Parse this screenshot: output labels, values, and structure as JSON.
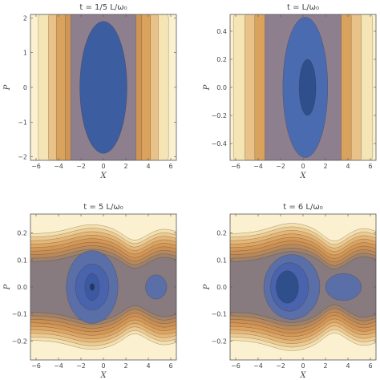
{
  "chart_data": [
    {
      "type": "contour",
      "title": "t = 1/5 L/ω₀",
      "xlabel": "X",
      "ylabel": "P",
      "xlim": [
        -6.5,
        6.5
      ],
      "ylim": [
        -2.1,
        2.1
      ],
      "x_ticks": [
        -6,
        -4,
        -2,
        0,
        2,
        4,
        6
      ],
      "x_tick_labels": [
        "−6",
        "−4",
        "−2",
        "0",
        "2",
        "4",
        "6"
      ],
      "y_ticks": [
        -2,
        -1,
        0,
        1,
        2
      ],
      "y_tick_labels": [
        "−2",
        "−1",
        "0",
        "1",
        "2"
      ],
      "bands": [
        {
          "type": "slab",
          "half_width": 5.8,
          "color": "#f5e5b5"
        },
        {
          "type": "slab",
          "half_width": 4.9,
          "color": "#e8c288"
        },
        {
          "type": "slab",
          "half_width": 4.2,
          "color": "#d9a35e"
        },
        {
          "type": "slab",
          "half_width": 3.4,
          "color": "#cf9556"
        },
        {
          "type": "slab",
          "half_width": 2.9,
          "color": "#8e7f8f"
        },
        {
          "type": "ellipse",
          "cx": 0,
          "cy": 0,
          "rx": 2.1,
          "ry": 1.9,
          "color": "#3c5da0"
        }
      ]
    },
    {
      "type": "contour",
      "title": "t = L/ω₀",
      "xlabel": "X",
      "ylabel": "P",
      "xlim": [
        -6.5,
        6.5
      ],
      "ylim": [
        -0.52,
        0.52
      ],
      "x_ticks": [
        -6,
        -4,
        -2,
        0,
        2,
        4,
        6
      ],
      "x_tick_labels": [
        "−6",
        "−4",
        "−2",
        "0",
        "2",
        "4",
        "6"
      ],
      "y_ticks": [
        -0.4,
        -0.2,
        0,
        0.2,
        0.4
      ],
      "y_tick_labels": [
        "−0.4",
        "−0.2",
        "0.0",
        "0.2",
        "0.4"
      ],
      "bands": [
        {
          "type": "slab",
          "half_width": 6.2,
          "color": "#f5e5b5"
        },
        {
          "type": "slab",
          "half_width": 5.2,
          "color": "#e8c288"
        },
        {
          "type": "slab",
          "half_width": 4.3,
          "color": "#d9a35e"
        },
        {
          "type": "slab",
          "half_width": 3.4,
          "color": "#8e7f8f"
        },
        {
          "type": "ellipse",
          "cx": 0.2,
          "cy": 0,
          "rx": 2.0,
          "ry": 0.5,
          "color": "#4a6bb0"
        },
        {
          "type": "ellipse",
          "cx": 0.4,
          "cy": 0,
          "rx": 0.75,
          "ry": 0.2,
          "color": "#2f4e8c"
        }
      ]
    },
    {
      "type": "contour",
      "title": "t = 5 L/ω₀",
      "xlabel": "X",
      "ylabel": "P",
      "xlim": [
        -6.5,
        6.5
      ],
      "ylim": [
        -0.27,
        0.27
      ],
      "x_ticks": [
        -6,
        -4,
        -2,
        0,
        2,
        4,
        6
      ],
      "x_tick_labels": [
        "−6",
        "−4",
        "−2",
        "0",
        "2",
        "4",
        "6"
      ],
      "y_ticks": [
        -0.2,
        -0.1,
        0,
        0.1,
        0.2
      ],
      "y_tick_labels": [
        "−0.2",
        "−0.1",
        "0.0",
        "0.1",
        "0.2"
      ],
      "bands": [
        {
          "type": "wave",
          "a": 0.255,
          "b": 0.035,
          "color": "#f4dfae"
        },
        {
          "type": "wave",
          "a": 0.235,
          "b": 0.035,
          "color": "#eccb93"
        },
        {
          "type": "wave",
          "a": 0.215,
          "b": 0.035,
          "color": "#e4b779"
        },
        {
          "type": "wave",
          "a": 0.195,
          "b": 0.035,
          "color": "#dba665"
        },
        {
          "type": "wave",
          "a": 0.175,
          "b": 0.035,
          "color": "#d39858"
        },
        {
          "type": "wave",
          "a": 0.155,
          "b": 0.035,
          "color": "#c98f55"
        },
        {
          "type": "wave",
          "a": 0.135,
          "b": 0.035,
          "color": "#b78a5e"
        },
        {
          "type": "wave",
          "a": 0.115,
          "b": 0.035,
          "color": "#a0826a"
        },
        {
          "type": "wave",
          "a": 0.095,
          "b": 0.035,
          "color": "#877b80"
        },
        {
          "type": "ellipse",
          "cx": -1.0,
          "cy": 0,
          "rx": 2.3,
          "ry": 0.135,
          "color": "#5a6ea8"
        },
        {
          "type": "ellipse",
          "cx": 4.7,
          "cy": 0,
          "rx": 0.95,
          "ry": 0.045,
          "color": "#5a6ea8"
        },
        {
          "type": "ellipse",
          "cx": -1.0,
          "cy": 0,
          "rx": 1.5,
          "ry": 0.085,
          "color": "#4a63ad"
        },
        {
          "type": "ellipse",
          "cx": -1.0,
          "cy": 0,
          "rx": 0.65,
          "ry": 0.05,
          "color": "#3c59a2"
        },
        {
          "type": "ellipse",
          "cx": -1.0,
          "cy": 0,
          "rx": 0.2,
          "ry": 0.013,
          "color": "#22386a"
        }
      ]
    },
    {
      "type": "contour",
      "title": "t = 6 L/ω₀",
      "xlabel": "X",
      "ylabel": "P",
      "xlim": [
        -6.5,
        6.5
      ],
      "ylim": [
        -0.27,
        0.27
      ],
      "x_ticks": [
        -6,
        -4,
        -2,
        0,
        2,
        4,
        6
      ],
      "x_tick_labels": [
        "−6",
        "−4",
        "−2",
        "0",
        "2",
        "4",
        "6"
      ],
      "y_ticks": [
        -0.2,
        -0.1,
        0,
        0.1,
        0.2
      ],
      "y_tick_labels": [
        "−0.2",
        "−0.1",
        "0.0",
        "0.1",
        "0.2"
      ],
      "bands": [
        {
          "type": "wave",
          "a": 0.255,
          "b": 0.04,
          "color": "#f4dfae"
        },
        {
          "type": "wave",
          "a": 0.235,
          "b": 0.04,
          "color": "#eccb93"
        },
        {
          "type": "wave",
          "a": 0.215,
          "b": 0.04,
          "color": "#e4b779"
        },
        {
          "type": "wave",
          "a": 0.195,
          "b": 0.04,
          "color": "#dba665"
        },
        {
          "type": "wave",
          "a": 0.175,
          "b": 0.04,
          "color": "#d39858"
        },
        {
          "type": "wave",
          "a": 0.155,
          "b": 0.04,
          "color": "#c98f55"
        },
        {
          "type": "wave",
          "a": 0.135,
          "b": 0.04,
          "color": "#b78a5e"
        },
        {
          "type": "wave",
          "a": 0.115,
          "b": 0.04,
          "color": "#a0826a"
        },
        {
          "type": "wave",
          "a": 0.095,
          "b": 0.04,
          "color": "#877b80"
        },
        {
          "type": "ellipse",
          "cx": -1.0,
          "cy": 0,
          "rx": 2.5,
          "ry": 0.12,
          "color": "#5a6ea8"
        },
        {
          "type": "ellipse",
          "cx": 3.6,
          "cy": 0,
          "rx": 1.6,
          "ry": 0.05,
          "color": "#5a6ea8"
        },
        {
          "type": "ellipse",
          "cx": -1.2,
          "cy": 0,
          "rx": 1.7,
          "ry": 0.09,
          "color": "#4a63ad"
        },
        {
          "type": "ellipse",
          "cx": -1.4,
          "cy": 0,
          "rx": 1.0,
          "ry": 0.06,
          "color": "#2f4e8c"
        }
      ]
    }
  ]
}
